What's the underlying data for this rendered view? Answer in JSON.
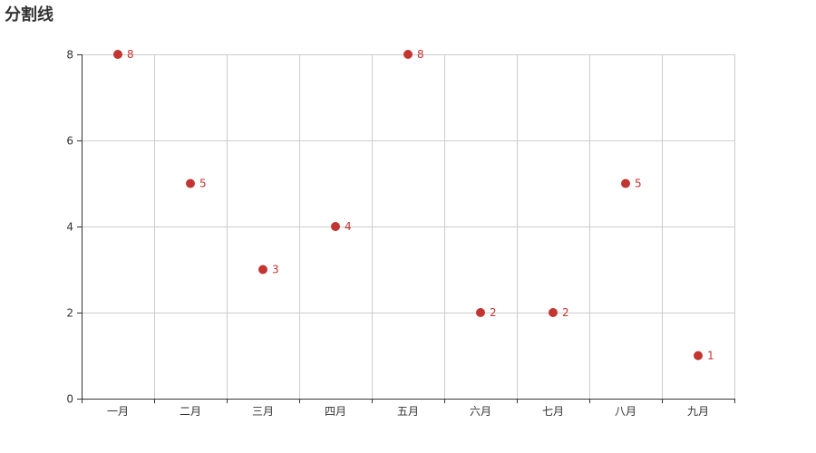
{
  "chart_data": {
    "type": "scatter",
    "title": "分割线",
    "xlabel": "",
    "ylabel": "",
    "categories": [
      "一月",
      "二月",
      "三月",
      "四月",
      "五月",
      "六月",
      "七月",
      "八月",
      "九月"
    ],
    "values": [
      8,
      5,
      3,
      4,
      8,
      2,
      2,
      5,
      1
    ],
    "data_labels": [
      "8",
      "5",
      "3",
      "4",
      "8",
      "2",
      "2",
      "5",
      "1"
    ],
    "ylim": [
      0,
      8
    ],
    "yticks": [
      "0",
      "2",
      "4",
      "6",
      "8"
    ],
    "grid": {
      "x_split_lines": true,
      "y_split_lines": true
    },
    "legend": "none",
    "colors": {
      "point": "#c23531",
      "label": "#c23531",
      "grid": "#cccccc",
      "axis": "#333333",
      "tick_text": "#333333",
      "title": "#333333"
    }
  }
}
